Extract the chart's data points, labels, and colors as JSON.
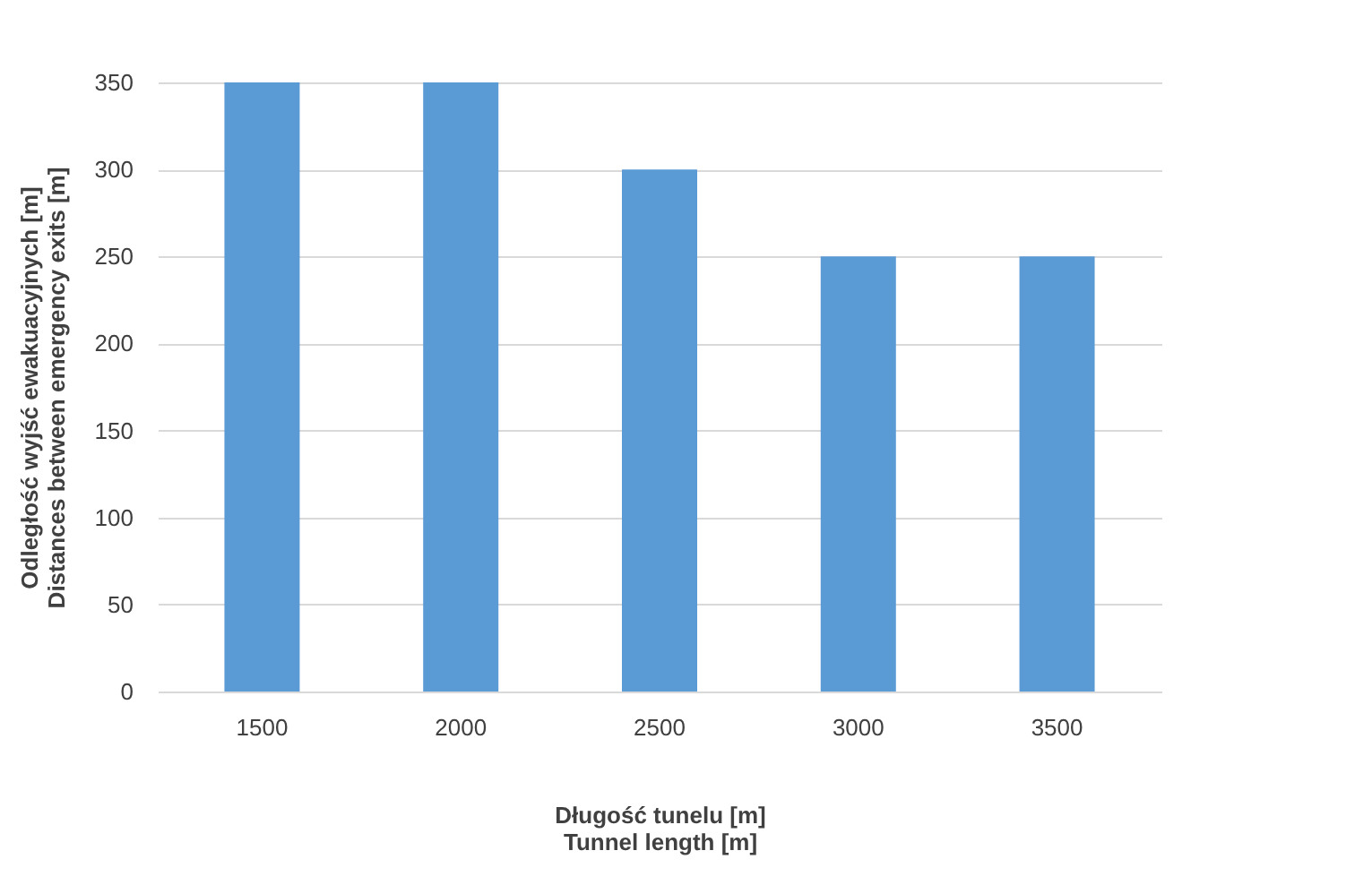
{
  "chart_data": {
    "type": "bar",
    "xlabel": "Długość tunelu [m]\nTunnel length [m]",
    "ylabel": "Odległość wyjść ewakuacyjnych [m]\nDistances between emergency exits [m]",
    "categories": [
      "1500",
      "2000",
      "2500",
      "3000",
      "3500"
    ],
    "values": [
      350,
      350,
      300,
      250,
      250
    ],
    "color": "#5b9bd5",
    "ylim": [
      0,
      350
    ],
    "yticks": [
      0,
      50,
      100,
      150,
      200,
      250,
      300,
      350
    ],
    "grid": "y"
  }
}
